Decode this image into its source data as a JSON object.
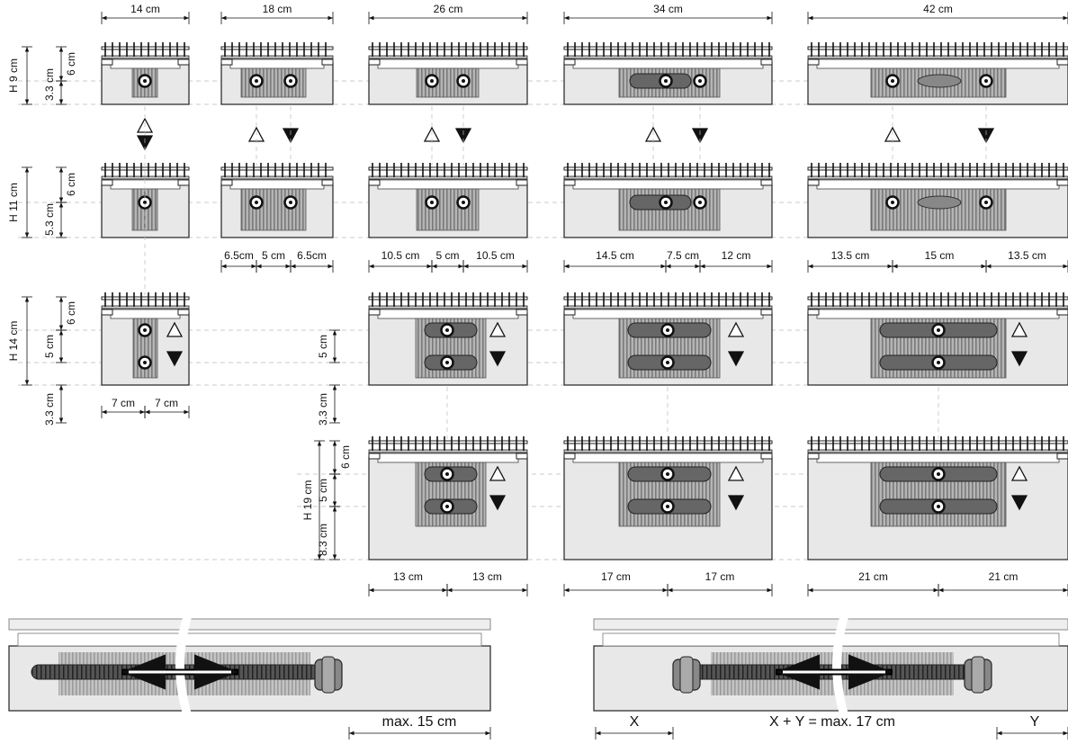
{
  "widths": [
    "14 cm",
    "18 cm",
    "26 cm",
    "34 cm",
    "42 cm"
  ],
  "h9": {
    "height": "H 9 cm",
    "top": "6 cm",
    "bottom": "3.3 cm"
  },
  "h11": {
    "height": "H 11 cm",
    "top": "6 cm",
    "bottom": "5.3 cm",
    "spacing": [
      [
        "6.5cm",
        "5 cm",
        "6.5cm"
      ],
      [
        "10.5 cm",
        "5 cm",
        "10.5 cm"
      ],
      [
        "14.5 cm",
        "7.5 cm",
        "12 cm"
      ],
      [
        "13.5 cm",
        "15 cm",
        "13.5 cm"
      ]
    ]
  },
  "h14": {
    "height": "H 14 cm",
    "top": "6 cm",
    "middle": "5 cm",
    "bottom": "3.3 cm",
    "spacing": [
      "7 cm",
      "7 cm"
    ],
    "wide_middle": "5 cm",
    "wide_bottom": "3.3 cm"
  },
  "h19": {
    "height": "H 19 cm",
    "top": "6 cm",
    "middle": "5 cm",
    "bottom": "8.3 cm",
    "spacing": [
      [
        "13 cm",
        "13 cm"
      ],
      [
        "17 cm",
        "17 cm"
      ],
      [
        "21 cm",
        "21 cm"
      ]
    ]
  },
  "connection": {
    "one_sided": "max. 15 cm",
    "x": "X",
    "formula": "X + Y = max. 17 cm",
    "y": "Y"
  }
}
